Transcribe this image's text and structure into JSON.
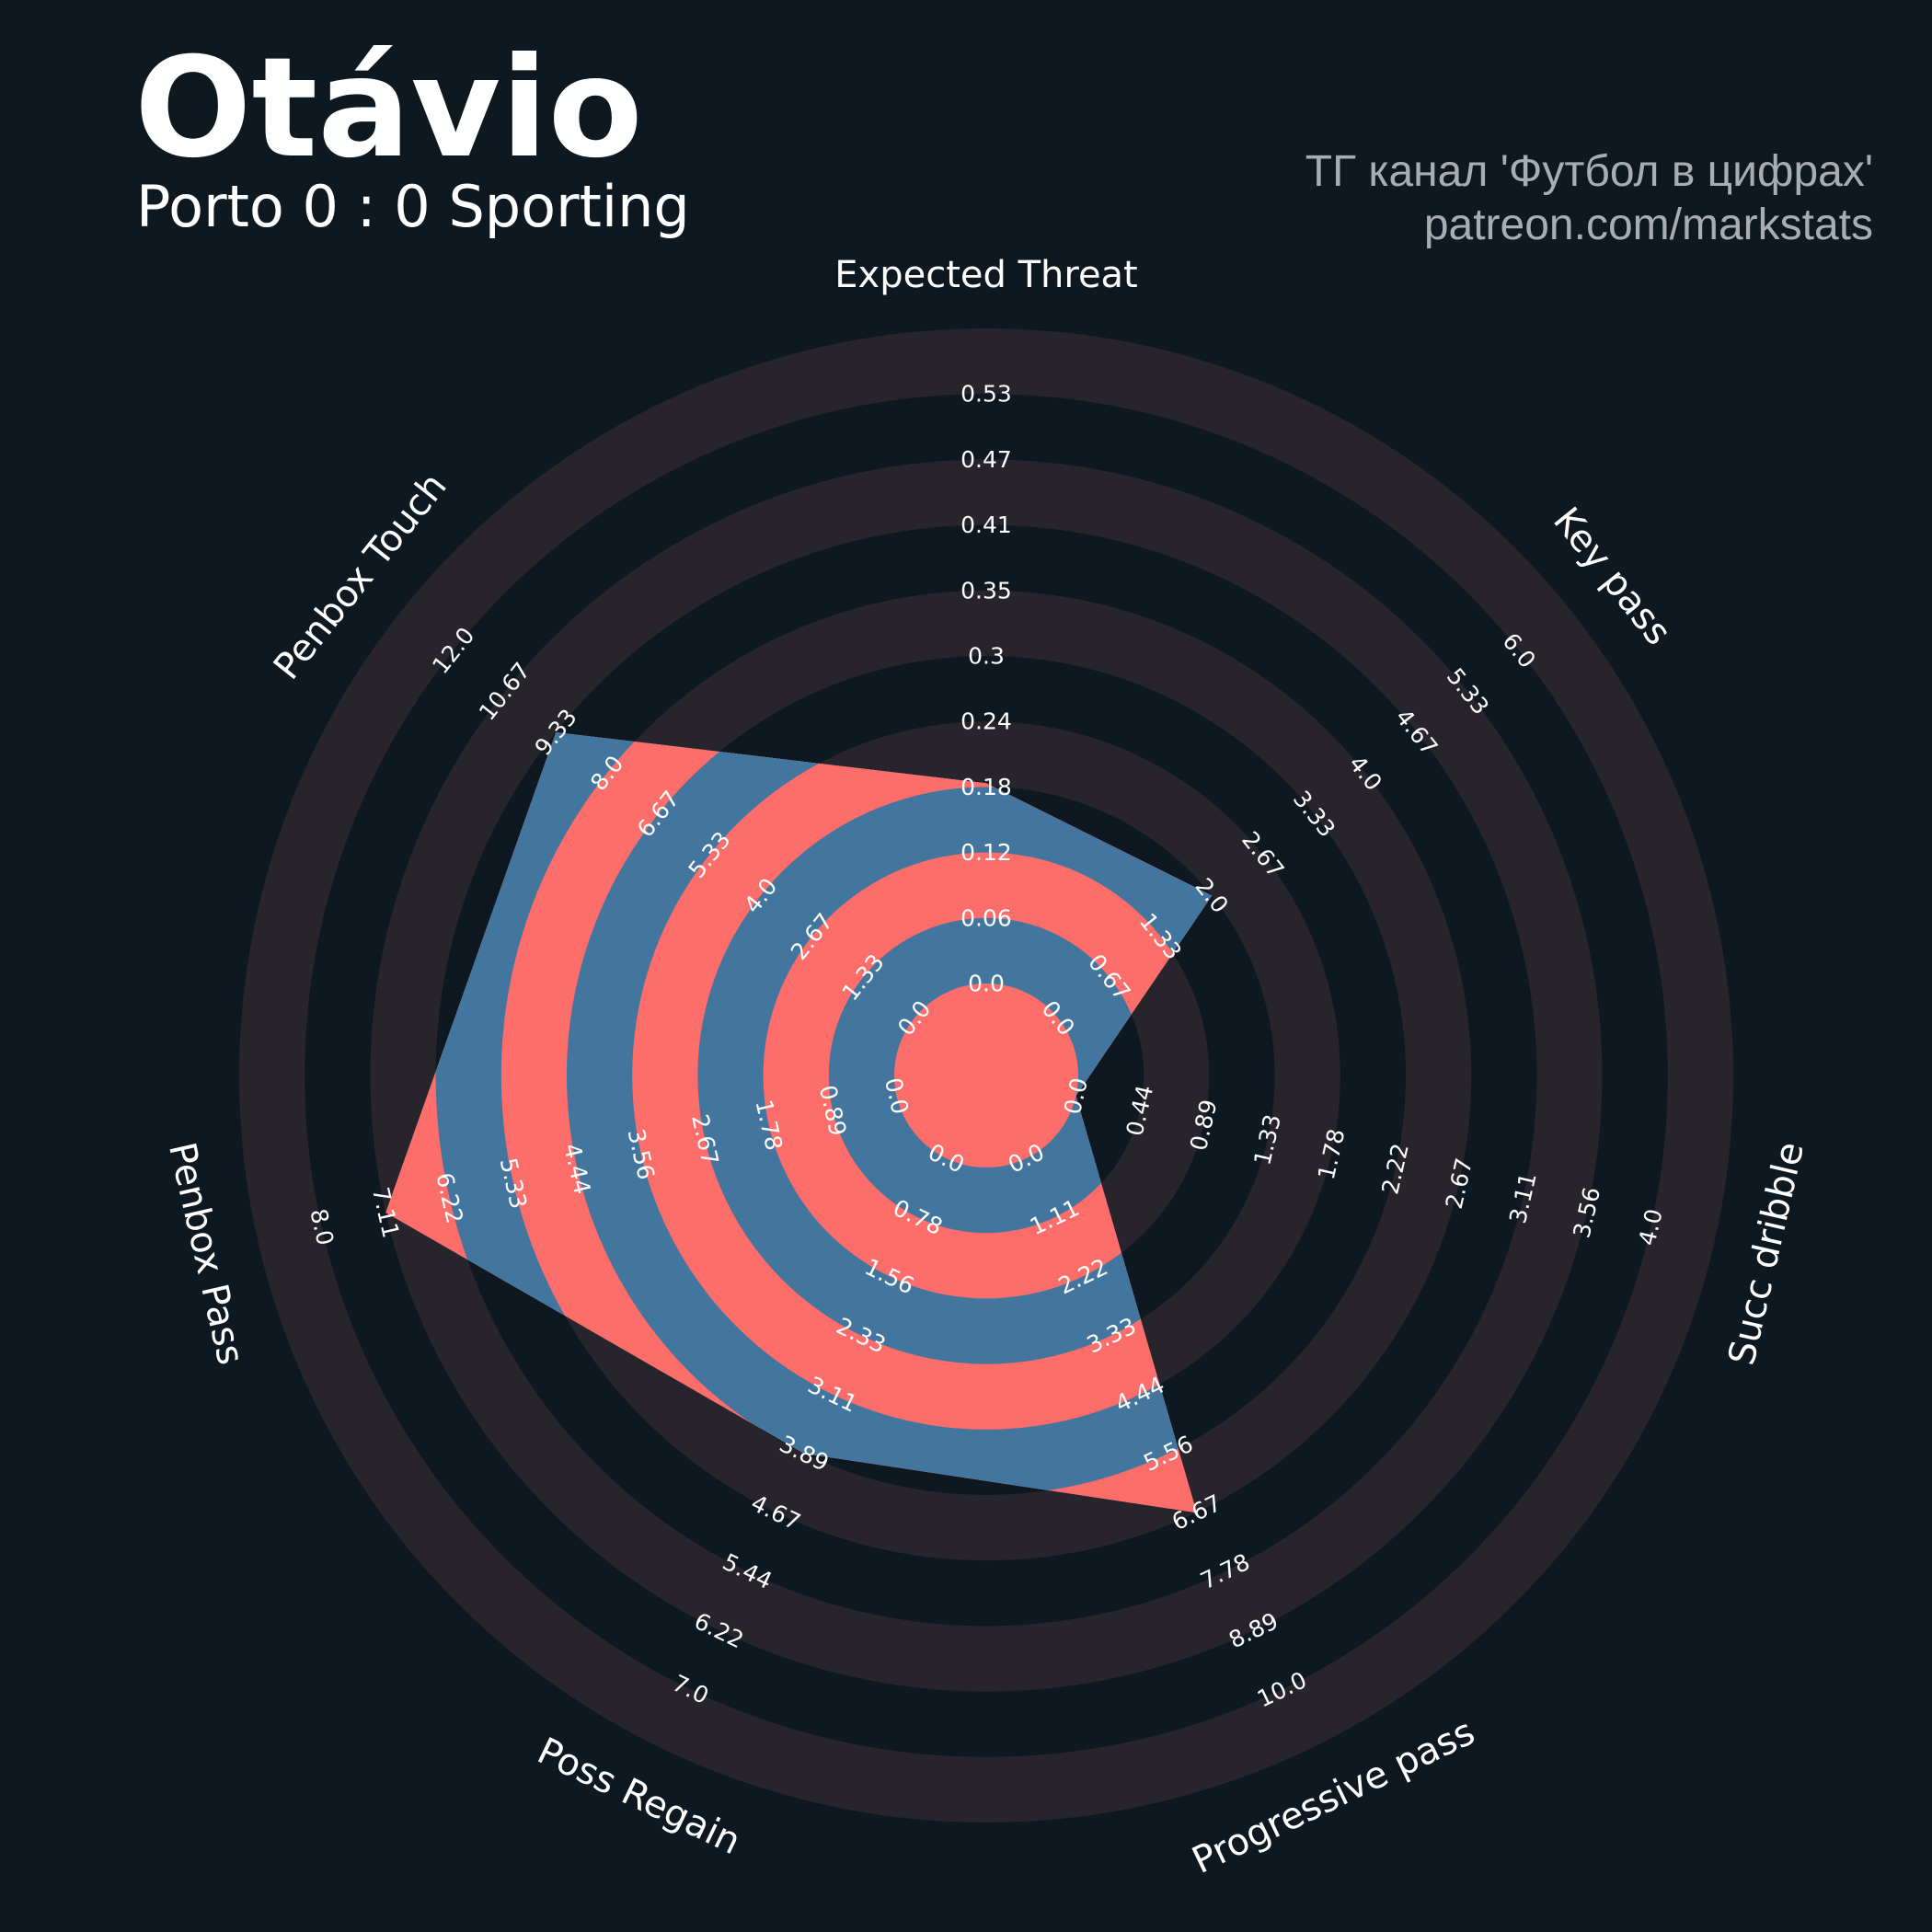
{
  "header": {
    "title": "Otávio",
    "subtitle": "Porto 0 : 0 Sporting",
    "credit_line1": "ТГ канал 'Футбол в цифрах'",
    "credit_line2": "patreon.com/markstats"
  },
  "colors": {
    "background": "#0e1820",
    "ring_band": "#28242b",
    "player_fill_a": "#fd6d69",
    "player_fill_b": "#43769f",
    "text": "#ffffff",
    "credit_text": "#a8adb2"
  },
  "chart_data": {
    "type": "radar",
    "title": "Otávio",
    "params": [
      {
        "name": "Expected Threat",
        "value": 0.18,
        "min": 0.0,
        "max": 0.53,
        "ticks": [
          "0.0",
          "0.06",
          "0.12",
          "0.18",
          "0.24",
          "0.3",
          "0.35",
          "0.41",
          "0.47",
          "0.53"
        ]
      },
      {
        "name": "Key pass",
        "value": 2.0,
        "min": 0.0,
        "max": 6.0,
        "ticks": [
          "0.0",
          "0.67",
          "1.33",
          "2.0",
          "2.67",
          "3.33",
          "4.0",
          "4.67",
          "5.33",
          "6.0"
        ]
      },
      {
        "name": "Succ dribble",
        "value": 0.0,
        "min": 0.0,
        "max": 4.0,
        "ticks": [
          "0.0",
          "0.44",
          "0.89",
          "1.33",
          "1.78",
          "2.22",
          "2.67",
          "3.11",
          "3.56",
          "4.0"
        ]
      },
      {
        "name": "Progressive pass",
        "value": 6.67,
        "min": 0.0,
        "max": 10.0,
        "ticks": [
          "0.0",
          "1.11",
          "2.22",
          "3.33",
          "4.44",
          "5.56",
          "6.67",
          "7.78",
          "8.89",
          "10.0"
        ]
      },
      {
        "name": "Poss Regain",
        "value": 3.89,
        "min": 0.0,
        "max": 7.0,
        "ticks": [
          "0.0",
          "0.78",
          "1.56",
          "2.33",
          "3.11",
          "3.89",
          "4.67",
          "5.44",
          "6.22",
          "7.0"
        ]
      },
      {
        "name": "Penbox Pass",
        "value": 7.11,
        "min": 0.0,
        "max": 8.0,
        "ticks": [
          "0.0",
          "0.89",
          "1.78",
          "2.67",
          "3.56",
          "4.44",
          "5.33",
          "6.22",
          "7.11",
          "8.0"
        ]
      },
      {
        "name": "Penbox Touch",
        "value": 9.33,
        "min": 0.0,
        "max": 12.0,
        "ticks": [
          "0.0",
          "1.33",
          "2.67",
          "4.0",
          "5.33",
          "6.67",
          "8.0",
          "9.33",
          "10.67",
          "12.0"
        ]
      }
    ],
    "rings": 10
  }
}
